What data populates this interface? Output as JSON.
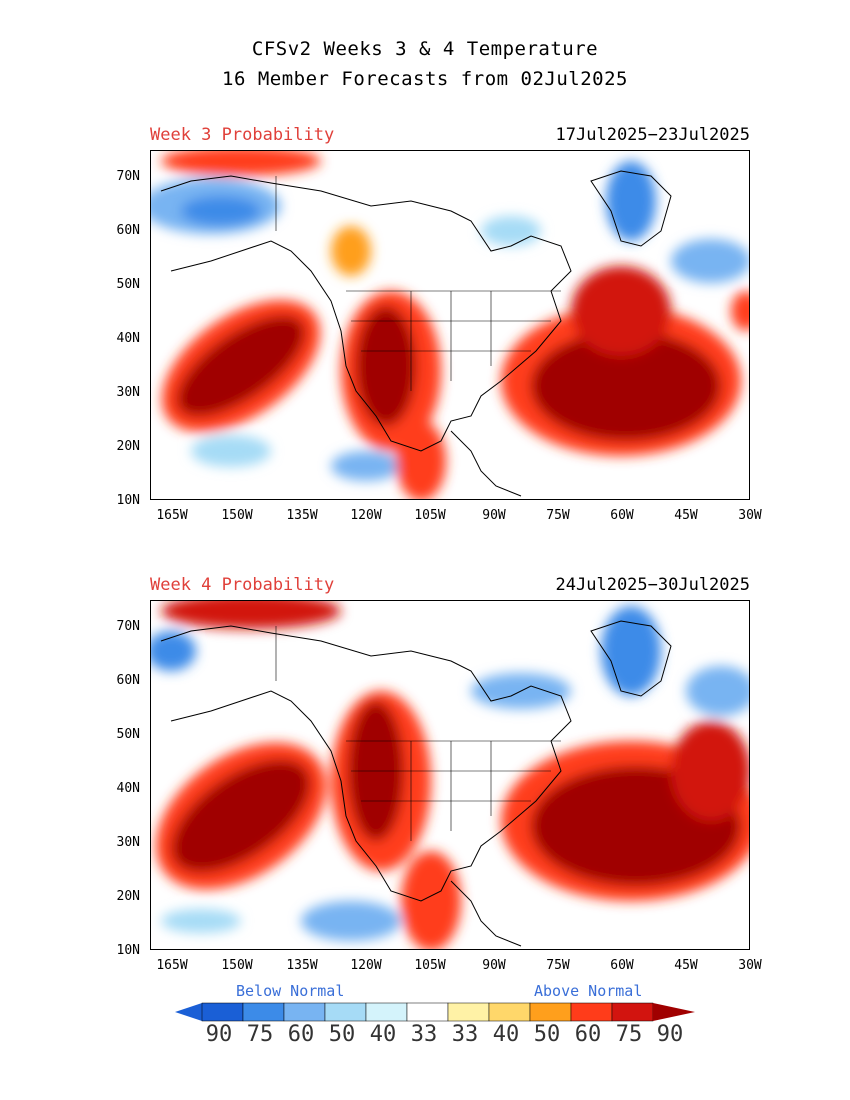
{
  "header": {
    "line1": "CFSv2 Weeks 3 & 4 Temperature",
    "line2": "16 Member Forecasts from 02Jul2025"
  },
  "panels": [
    {
      "label": "Week 3 Probability",
      "dates": "17Jul2025−23Jul2025"
    },
    {
      "label": "Week 4 Probability",
      "dates": "24Jul2025−30Jul2025"
    }
  ],
  "axes": {
    "lat": [
      "70N",
      "60N",
      "50N",
      "40N",
      "30N",
      "20N",
      "10N"
    ],
    "lon": [
      "165W",
      "150W",
      "135W",
      "120W",
      "105W",
      "90W",
      "75W",
      "60W",
      "45W",
      "30W"
    ]
  },
  "legend": {
    "below_label": "Below Normal",
    "above_label": "Above Normal",
    "values": [
      "90",
      "75",
      "60",
      "50",
      "40",
      "33",
      "33",
      "40",
      "50",
      "60",
      "75",
      "90"
    ],
    "colors": [
      "#1a5fd6",
      "#3c8be8",
      "#78b4f2",
      "#a6dbf6",
      "#d4f3fb",
      "#ffffff",
      "#ffffff",
      "#fff2a6",
      "#ffd76a",
      "#ff9f1c",
      "#ff3c1a",
      "#d2140f",
      "#a00000"
    ],
    "colors_below_stops": [
      "#1a5fd6",
      "#3c8be8",
      "#78b4f2",
      "#a6dbf6",
      "#d4f3fb"
    ],
    "colors_above_stops": [
      "#fff2a6",
      "#ffd76a",
      "#ff9f1c",
      "#ff3c1a",
      "#d2140f",
      "#a00000"
    ]
  }
}
